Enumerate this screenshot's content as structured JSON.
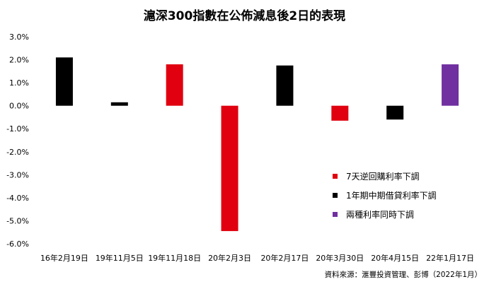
{
  "chart_data": {
    "type": "bar",
    "title": "滬深300指數在公佈減息後2日的表現",
    "categories": [
      "16年2月19日",
      "19年11月5日",
      "19年11月18日",
      "20年2月3日",
      "20年2月17日",
      "20年3月30日",
      "20年4月15日",
      "22年1月17日"
    ],
    "values": [
      2.1,
      0.15,
      1.8,
      -5.45,
      1.75,
      -0.65,
      -0.6,
      1.8
    ],
    "bar_series": [
      1,
      1,
      0,
      0,
      1,
      0,
      1,
      2
    ],
    "series": [
      {
        "name": "7天逆回購利率下調",
        "color": "#e0000f"
      },
      {
        "name": "1年期中期借貸利率下調",
        "color": "#000000"
      },
      {
        "name": "兩種利率同時下調",
        "color": "#7030a0"
      }
    ],
    "y_ticks": [
      "3.0%",
      "2.0%",
      "1.0%",
      "0.0%",
      "-1.0%",
      "-2.0%",
      "-3.0%",
      "-4.0%",
      "-5.0%",
      "-6.0%"
    ],
    "y_tick_values": [
      3,
      2,
      1,
      0,
      -1,
      -2,
      -3,
      -4,
      -5,
      -6
    ],
    "ylim": [
      -6,
      3
    ],
    "xlabel": "",
    "ylabel": "",
    "grid": false,
    "legend_position": "lower-right"
  },
  "source_note": "資料來源：滙豐投資管理、彭博（2022年1月）"
}
